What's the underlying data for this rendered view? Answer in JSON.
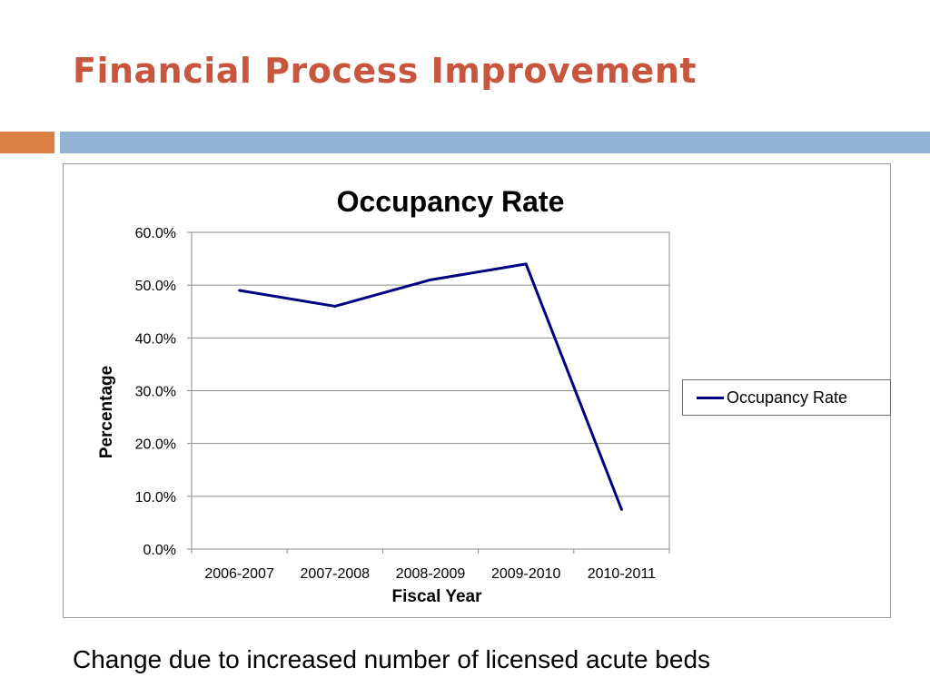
{
  "slide": {
    "title": "Financial Process Improvement",
    "caption": "Change due to increased number of licensed acute beds"
  },
  "colors": {
    "title": "#c8553d",
    "accent_orange": "#dd8046",
    "accent_blue": "#93b3d7",
    "series_line": "#000080"
  },
  "chart_data": {
    "type": "line",
    "title": "Occupancy Rate",
    "xlabel": "Fiscal Year",
    "ylabel": "Percentage",
    "categories": [
      "2006-2007",
      "2007-2008",
      "2008-2009",
      "2009-2010",
      "2010-2011"
    ],
    "series": [
      {
        "name": "Occupancy Rate",
        "values": [
          49.0,
          46.0,
          51.0,
          54.0,
          7.5
        ],
        "color": "#000080"
      }
    ],
    "yticks": [
      "0.0%",
      "10.0%",
      "20.0%",
      "30.0%",
      "40.0%",
      "50.0%",
      "60.0%"
    ],
    "ylim": [
      0,
      60
    ],
    "grid": true,
    "legend_position": "right"
  }
}
